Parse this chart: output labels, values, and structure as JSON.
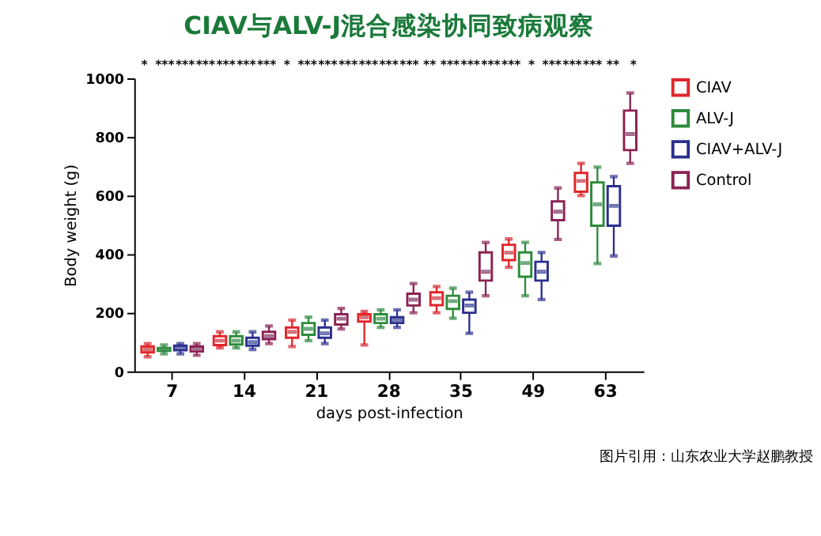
{
  "chart_data": {
    "type": "box",
    "title": "CIAV与ALV-J混合感染协同致病观察",
    "xlabel": "days post-infection",
    "ylabel": "Body weight (g)",
    "categories": [
      "7",
      "14",
      "21",
      "28",
      "35",
      "49",
      "63"
    ],
    "ylim": [
      0,
      1000
    ],
    "yticks": [
      0,
      200,
      400,
      600,
      800,
      {
        "value": 1000,
        "label": "1000"
      }
    ],
    "grid": false,
    "legend": "right",
    "series": [
      {
        "name": "CIAV",
        "color": "#e0262a",
        "boxes": [
          {
            "low": 50,
            "q1": 65,
            "median": 75,
            "q3": 85,
            "high": 95
          },
          {
            "low": 80,
            "q1": 90,
            "median": 105,
            "q3": 120,
            "high": 135
          },
          {
            "low": 85,
            "q1": 115,
            "median": 135,
            "q3": 150,
            "high": 175
          },
          {
            "low": 90,
            "q1": 170,
            "median": 185,
            "q3": 195,
            "high": 205
          },
          {
            "low": 200,
            "q1": 226,
            "median": 250,
            "q3": 270,
            "high": 290
          },
          {
            "low": 355,
            "q1": 380,
            "median": 405,
            "q3": 432,
            "high": 452
          },
          {
            "low": 600,
            "q1": 613,
            "median": 650,
            "q3": 677,
            "high": 710
          }
        ]
      },
      {
        "name": "ALV-J",
        "color": "#2e8b3a",
        "boxes": [
          {
            "low": 60,
            "q1": 70,
            "median": 75,
            "q3": 80,
            "high": 90
          },
          {
            "low": 80,
            "q1": 92,
            "median": 105,
            "q3": 120,
            "high": 135
          },
          {
            "low": 105,
            "q1": 125,
            "median": 145,
            "q3": 165,
            "high": 185
          },
          {
            "low": 150,
            "q1": 165,
            "median": 180,
            "q3": 195,
            "high": 210
          },
          {
            "low": 181,
            "q1": 213,
            "median": 240,
            "q3": 258,
            "high": 284
          },
          {
            "low": 258,
            "q1": 323,
            "median": 370,
            "q3": 406,
            "high": 440
          },
          {
            "low": 368,
            "q1": 497,
            "median": 570,
            "q3": 645,
            "high": 697
          }
        ]
      },
      {
        "name": "CIAV+ALV-J",
        "color": "#2b2f8f",
        "boxes": [
          {
            "low": 60,
            "q1": 72,
            "median": 80,
            "q3": 88,
            "high": 95
          },
          {
            "low": 75,
            "q1": 88,
            "median": 100,
            "q3": 115,
            "high": 135
          },
          {
            "low": 95,
            "q1": 115,
            "median": 130,
            "q3": 150,
            "high": 175
          },
          {
            "low": 150,
            "q1": 165,
            "median": 175,
            "q3": 185,
            "high": 210
          },
          {
            "low": 130,
            "q1": 200,
            "median": 225,
            "q3": 245,
            "high": 270
          },
          {
            "low": 245,
            "q1": 310,
            "median": 340,
            "q3": 374,
            "high": 406
          },
          {
            "low": 394,
            "q1": 497,
            "median": 565,
            "q3": 632,
            "high": 665
          }
        ]
      },
      {
        "name": "Control",
        "color": "#8b2252",
        "boxes": [
          {
            "low": 55,
            "q1": 68,
            "median": 78,
            "q3": 85,
            "high": 95
          },
          {
            "low": 95,
            "q1": 110,
            "median": 120,
            "q3": 135,
            "high": 155
          },
          {
            "low": 145,
            "q1": 160,
            "median": 180,
            "q3": 195,
            "high": 215
          },
          {
            "low": 200,
            "q1": 225,
            "median": 245,
            "q3": 265,
            "high": 300
          },
          {
            "low": 258,
            "q1": 310,
            "median": 340,
            "q3": 406,
            "high": 440
          },
          {
            "low": 450,
            "q1": 516,
            "median": 545,
            "q3": 580,
            "high": 626
          },
          {
            "low": 710,
            "q1": 755,
            "median": 810,
            "q3": 890,
            "high": 950
          }
        ]
      }
    ],
    "annotations": [
      "*",
      "***",
      "***",
      "***",
      "***",
      "***",
      "***",
      "*",
      "***",
      "***",
      "***",
      "***",
      "***",
      "***",
      "**",
      "***",
      "***",
      "***",
      "***",
      "*",
      "***",
      "***",
      "***",
      "**",
      "*",
      "图片引用：山东农业大学赵鹏教授"
    ]
  }
}
